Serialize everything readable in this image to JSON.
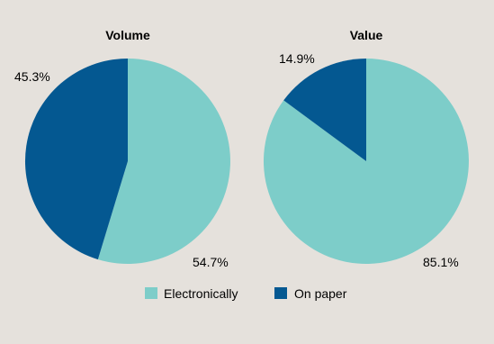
{
  "chart_data": [
    {
      "type": "pie",
      "title": "Volume",
      "categories": [
        "Electronically",
        "On paper"
      ],
      "values": [
        54.7,
        45.3
      ],
      "labels": [
        "54.7%",
        "45.3%"
      ]
    },
    {
      "type": "pie",
      "title": "Value",
      "categories": [
        "Electronically",
        "On paper"
      ],
      "values": [
        85.1,
        14.9
      ],
      "labels": [
        "85.1%",
        "14.9%"
      ]
    }
  ],
  "legend": {
    "placement": "bottom",
    "items": [
      {
        "label": "Electronically",
        "color": "#7dcdc9"
      },
      {
        "label": "On paper",
        "color": "#045891"
      }
    ]
  },
  "colors": {
    "electronically": "#7dcdc9",
    "on_paper": "#045891",
    "background": "#e5e1dc"
  }
}
